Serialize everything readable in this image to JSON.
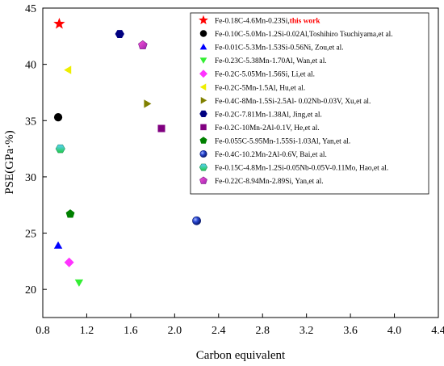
{
  "chart_data": {
    "type": "scatter",
    "title": "",
    "xlabel": "Carbon equivalent",
    "ylabel": "PSE(GPa·%)",
    "xlim": [
      0.8,
      4.4
    ],
    "ylim": [
      17.5,
      45
    ],
    "xticks": [
      "0.8",
      "1.2",
      "1.6",
      "2.0",
      "2.4",
      "2.8",
      "3.2",
      "3.6",
      "4.0",
      "4.4"
    ],
    "yticks": [
      "20",
      "25",
      "30",
      "35",
      "40",
      "45"
    ],
    "grid": false,
    "legend_position": "top-right",
    "series": [
      {
        "name": "Fe-0.18C-4.6Mn-0.23Si,",
        "name_suffix": "this work",
        "marker": "star",
        "color": "#ff0000",
        "points": [
          [
            0.95,
            43.6
          ]
        ]
      },
      {
        "name": "Fe-0.10C-5.0Mn-1.2Si-0.02Al,Toshihiro Tsuchiyama,et al.",
        "marker": "circle",
        "color": "#000000",
        "points": [
          [
            0.94,
            35.3
          ]
        ]
      },
      {
        "name": "Fe-0.01C-5.3Mn-1.53Si-0.56Ni, Zou,et al.",
        "marker": "triangle-up",
        "color": "#0000ff",
        "points": [
          [
            0.94,
            23.9
          ]
        ]
      },
      {
        "name": "Fe-0.23C-5.38Mn-1.70Al, Wan,et al.",
        "marker": "triangle-down",
        "color": "#33ee33",
        "points": [
          [
            1.13,
            20.6
          ]
        ]
      },
      {
        "name": "Fe-0.2C-5.05Mn-1.56Si, Li,et al.",
        "marker": "diamond",
        "color": "#ff33ff",
        "points": [
          [
            1.04,
            22.4
          ]
        ]
      },
      {
        "name": "Fe-0.2C-5Mn-1.5Al, Hu,et al.",
        "marker": "triangle-left",
        "color": "#eeee00",
        "points": [
          [
            1.03,
            39.5
          ]
        ]
      },
      {
        "name": "Fe-0.4C-8Mn-1.5Si-2.5Al- 0.02Nb-0.03V, Xu,et al.",
        "marker": "triangle-right",
        "color": "#808000",
        "points": [
          [
            1.75,
            36.5
          ]
        ]
      },
      {
        "name": "Fe-0.2C-7.81Mn-1.38Al, Jing,et al.",
        "marker": "hexagon",
        "color": "#000080",
        "points": [
          [
            1.5,
            42.7
          ]
        ]
      },
      {
        "name": "Fe-0.2C-10Mn-2Al-0.1V, He,et al.",
        "marker": "square",
        "color": "#800080",
        "points": [
          [
            1.88,
            34.3
          ]
        ]
      },
      {
        "name": "Fe-0.055C-5.95Mn-1.55Si-1.03Al, Yan,et al.",
        "marker": "pentagon",
        "color": "#008000",
        "points": [
          [
            1.05,
            26.7
          ]
        ]
      },
      {
        "name": "Fe-0.4C-10.2Mn-2Al-0.6V, Bai,et al.",
        "marker": "sphere",
        "color": "#1a3cc8",
        "points": [
          [
            2.2,
            26.1
          ]
        ]
      },
      {
        "name": "Fe-0.15C-4.8Mn-1.2Si-0.05Nb-0.05V-0.11Mo, Hao,et al.",
        "marker": "hexagon-grad",
        "color": "#33cc66",
        "points": [
          [
            0.96,
            32.5
          ]
        ]
      },
      {
        "name": "Fe-0.22C-8.94Mn-2.89Si, Yan,et al.",
        "marker": "pentagon-grad",
        "color": "#dd33aa",
        "points": [
          [
            1.71,
            41.7
          ]
        ]
      }
    ]
  }
}
